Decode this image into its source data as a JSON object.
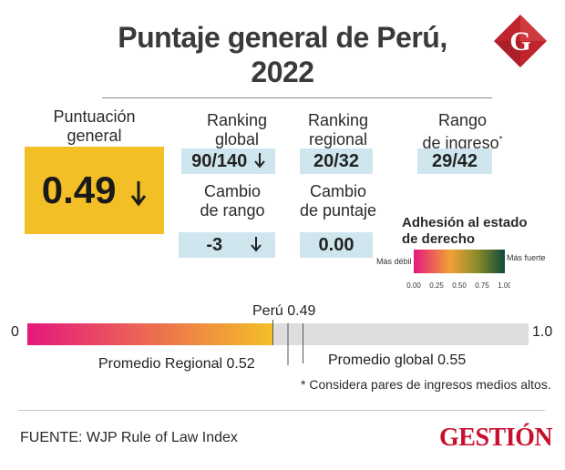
{
  "header": {
    "title_line1": "Puntaje general de Perú,",
    "title_line2": "2022",
    "logo_letter": "G"
  },
  "overall": {
    "label_line1": "Puntuación",
    "label_line2": "general",
    "value": "0.49",
    "trend_icon": "arrow-down-icon"
  },
  "ranking_global": {
    "label_line1": "Ranking",
    "label_line2": "global",
    "value": "90/140",
    "trend_icon": "arrow-down-icon"
  },
  "ranking_regional": {
    "label_line1": "Ranking",
    "label_line2": "regional",
    "value": "20/32"
  },
  "rango_ingreso": {
    "label_line1": "Rango",
    "label_line2": "de ingreso",
    "marker": "*",
    "value": "29/42"
  },
  "cambio_rango": {
    "label_line1": "Cambio",
    "label_line2": "de rango",
    "value": "-3",
    "trend_icon": "arrow-down-icon"
  },
  "cambio_puntaje": {
    "label_line1": "Cambio",
    "label_line2": "de puntaje",
    "value": "0.00"
  },
  "legend": {
    "title_line1": "Adhesión al estado",
    "title_line2": "de derecho",
    "weak_label": "Más débil",
    "strong_label": "Más fuerte",
    "ticks": [
      "0.00",
      "0.25",
      "0.50",
      "0.75",
      "1.00"
    ],
    "colors": [
      "#e5177d",
      "#f0a236",
      "#8a8a2a",
      "#0e4a3a"
    ]
  },
  "chart_data": {
    "type": "bar",
    "xlim": [
      0,
      1.0
    ],
    "min_label": "0",
    "max_label": "1.0",
    "value": 0.49,
    "value_label": "Perú 0.49",
    "regional_average": 0.52,
    "regional_label": "Promedio Regional  0.52",
    "global_average": 0.55,
    "global_label": "Promedio global 0.55",
    "fill_colors": [
      "#e5177d",
      "#f3bf26"
    ],
    "track_color": "#dddddd"
  },
  "footnote": "* Considera pares de ingresos medios altos.",
  "source": "FUENTE:  WJP Rule of Law Index",
  "brand": "GESTIÓN"
}
